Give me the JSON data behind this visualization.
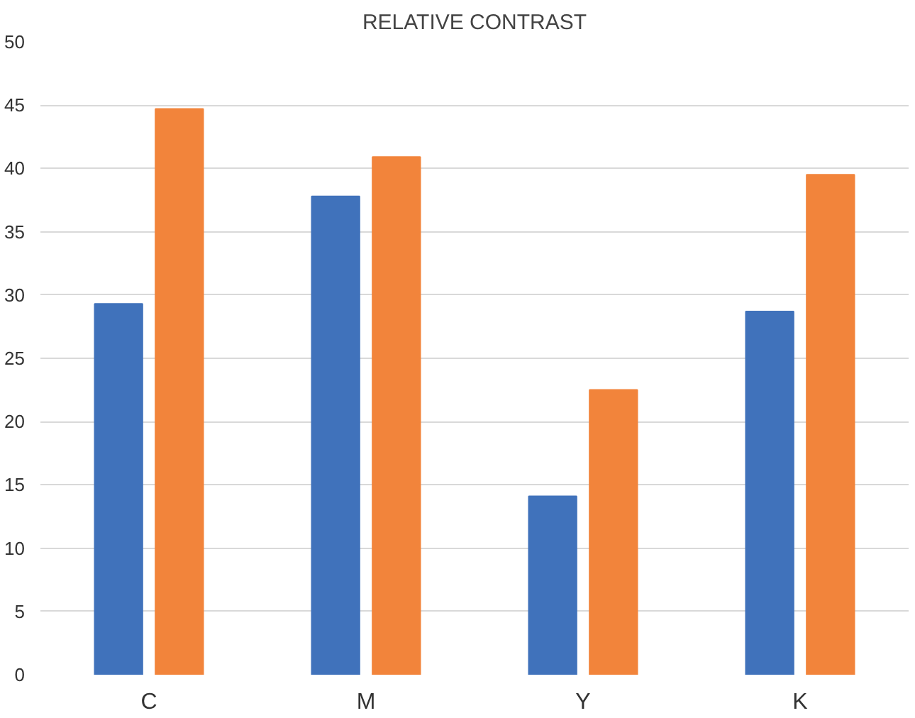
{
  "chart_data": {
    "type": "bar",
    "title": "RELATIVE CONTRAST",
    "categories": [
      "C",
      "M",
      "Y",
      "K"
    ],
    "series": [
      {
        "color": "#4072bb",
        "values": [
          29.3,
          37.8,
          14.1,
          28.7
        ]
      },
      {
        "color": "#f2843b",
        "values": [
          44.7,
          40.9,
          22.5,
          39.5
        ]
      }
    ],
    "ylim": [
      0,
      50
    ],
    "yticks": [
      0,
      5,
      10,
      15,
      20,
      25,
      30,
      35,
      40,
      45,
      50
    ],
    "grid": "y"
  }
}
